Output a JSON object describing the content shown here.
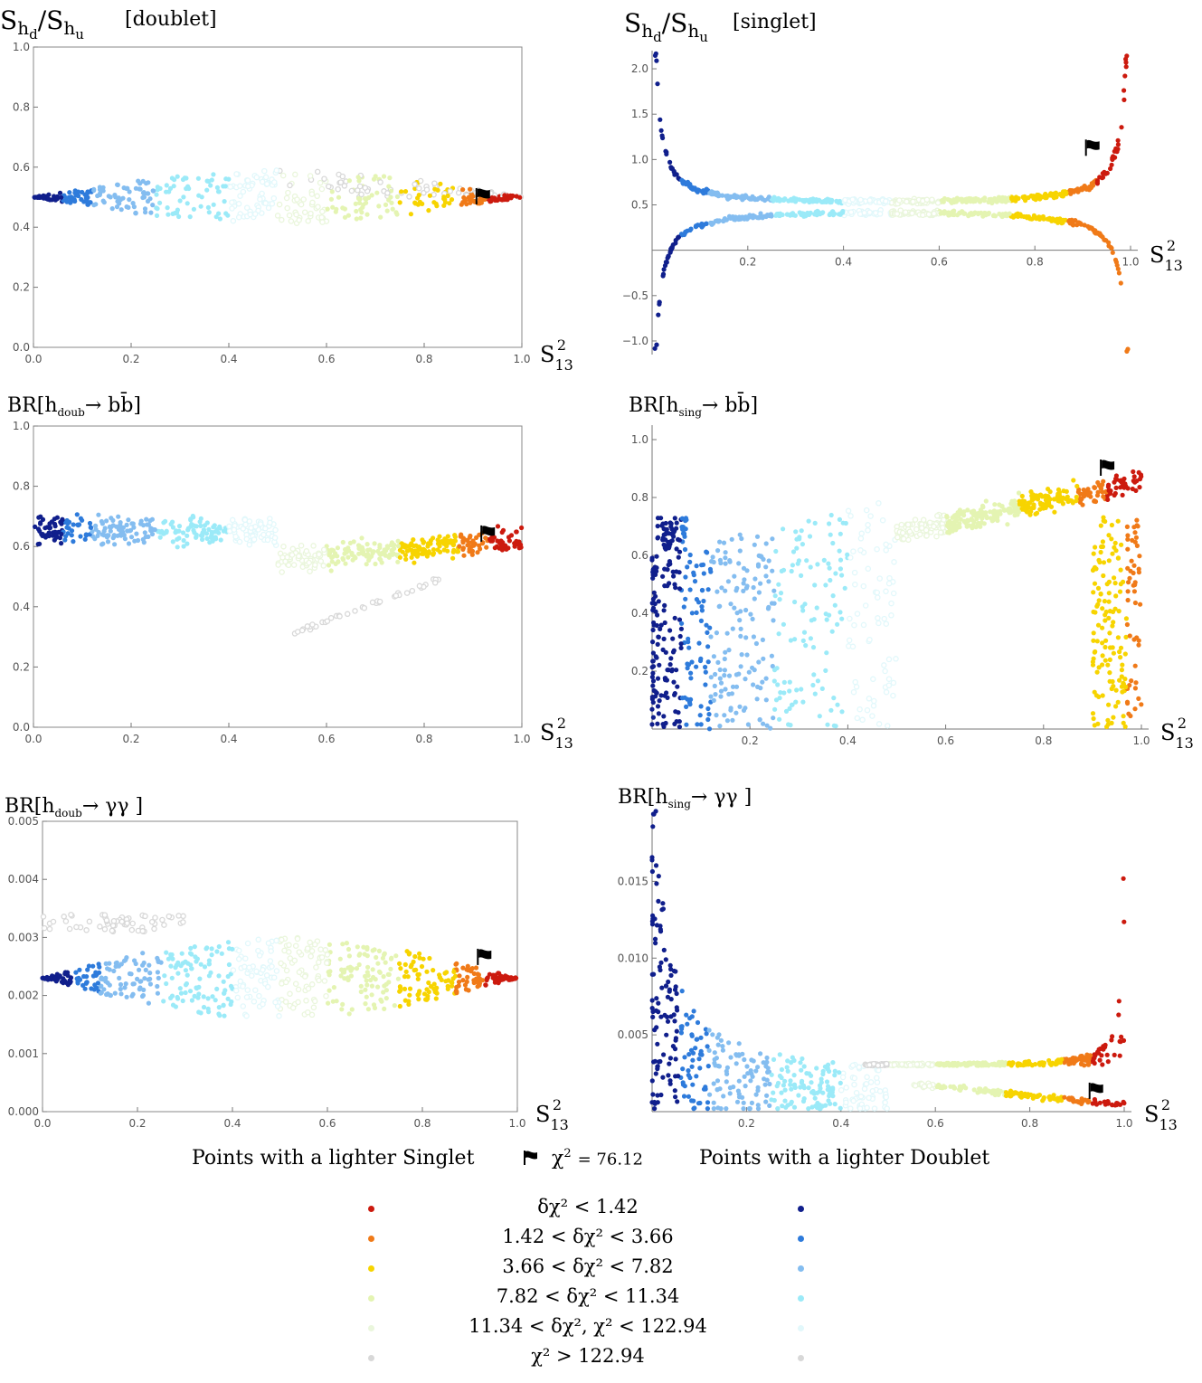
{
  "colors": {
    "red": "#cc1a0e",
    "orange": "#f07a18",
    "yellow": "#f7d400",
    "lime": "#e4f4b2",
    "palegreen": "#eaf6dc",
    "grey": "#d8d8d8",
    "navy": "#101f8c",
    "blue": "#2e7bdb",
    "lightblue": "#84bdf0",
    "cyan": "#9beaf8",
    "palecyan": "#e2f8fb"
  },
  "chart_data": [
    {
      "id": "p1",
      "type": "scatter",
      "title": "S_hd / S_hu [doublet]",
      "ylabel_main": "S",
      "ylabel_sub1": "h",
      "ylabel_subsub1": "d",
      "ylabel_sep": "/",
      "ylabel_sub2": "h",
      "ylabel_subsub2": "u",
      "ylabel_tag": "[doublet]",
      "xlabel": "S",
      "xlabel_sub": "13",
      "xlabel_sup": "2",
      "xlim": [
        0,
        1
      ],
      "ylim": [
        0,
        1
      ],
      "xticks": [
        "0.0",
        "0.2",
        "0.4",
        "0.6",
        "0.8",
        "1.0"
      ],
      "yticks": [
        "0.0",
        "0.2",
        "0.4",
        "0.6",
        "0.8",
        "1.0"
      ],
      "best_fit": [
        0.92,
        0.5
      ]
    },
    {
      "id": "p2",
      "type": "scatter",
      "title": "S_hd / S_hu [singlet]",
      "ylabel_main": "S",
      "ylabel_sub1": "h",
      "ylabel_subsub1": "d",
      "ylabel_sep": "/",
      "ylabel_sub2": "h",
      "ylabel_subsub2": "u",
      "ylabel_tag": "[singlet]",
      "xlabel": "S",
      "xlabel_sub": "13",
      "xlabel_sup": "2",
      "xlim": [
        0,
        1
      ],
      "ylim": [
        -1.15,
        2.2
      ],
      "xticks": [
        "0.2",
        "0.4",
        "0.6",
        "0.8",
        "1.0"
      ],
      "yticks": [
        "-1.0",
        "-0.5",
        "0.5",
        "1.0",
        "1.5",
        "2.0"
      ],
      "best_fit": [
        0.92,
        1.12
      ]
    },
    {
      "id": "p3",
      "type": "scatter",
      "title": "BR[h_doub -> b b-bar]",
      "ylabel_main": "BR[h",
      "ylabel_sub1": "doub",
      "ylabel_rest": "→ bb̄]",
      "xlabel": "S",
      "xlabel_sub": "13",
      "xlabel_sup": "2",
      "xlim": [
        0,
        1
      ],
      "ylim": [
        0,
        1
      ],
      "xticks": [
        "0.0",
        "0.2",
        "0.4",
        "0.6",
        "0.8",
        "1.0"
      ],
      "yticks": [
        "0.0",
        "0.2",
        "0.4",
        "0.6",
        "0.8",
        "1.0"
      ],
      "best_fit": [
        0.93,
        0.64
      ]
    },
    {
      "id": "p4",
      "type": "scatter",
      "title": "BR[h_sing -> b b-bar]",
      "ylabel_main": "BR[h",
      "ylabel_sub1": "sing",
      "ylabel_rest": "→ bb̄]",
      "xlabel": "S",
      "xlabel_sub": "13",
      "xlabel_sup": "2",
      "xlim": [
        0,
        1
      ],
      "ylim": [
        0,
        1.05
      ],
      "xticks": [
        "0.2",
        "0.4",
        "0.6",
        "0.8",
        "1.0"
      ],
      "yticks": [
        "0.2",
        "0.4",
        "0.6",
        "0.8",
        "1.0"
      ],
      "best_fit": [
        0.93,
        0.9
      ]
    },
    {
      "id": "p5",
      "type": "scatter",
      "title": "BR[h_doub -> gamma gamma]",
      "ylabel_main": "BR[h",
      "ylabel_sub1": "doub",
      "ylabel_rest": "→ γγ ]",
      "xlabel": "S",
      "xlabel_sub": "13",
      "xlabel_sup": "2",
      "xlim": [
        0,
        1
      ],
      "ylim": [
        0,
        0.005
      ],
      "xticks": [
        "0.0",
        "0.2",
        "0.4",
        "0.6",
        "0.8",
        "1.0"
      ],
      "yticks": [
        "0.000",
        "0.001",
        "0.002",
        "0.003",
        "0.004",
        "0.005"
      ],
      "best_fit": [
        0.93,
        0.00265
      ]
    },
    {
      "id": "p6",
      "type": "scatter",
      "title": "BR[h_sing -> gamma gamma]",
      "ylabel_main": "BR[h",
      "ylabel_sub1": "sing",
      "ylabel_rest": "→ γγ ]",
      "xlabel": "S",
      "xlabel_sub": "13",
      "xlabel_sup": "2",
      "xlim": [
        0,
        1
      ],
      "ylim": [
        0,
        0.0195
      ],
      "xticks": [
        "0.2",
        "0.4",
        "0.6",
        "0.8",
        "1.0"
      ],
      "yticks": [
        "0.005",
        "0.010",
        "0.015"
      ],
      "best_fit": [
        0.94,
        0.0013
      ]
    }
  ],
  "legend": {
    "left_header": "Points with a lighter Singlet",
    "center_header_prefix": "χ",
    "center_header_sup": "2",
    "center_header_value": "= 76.12",
    "right_header": "Points with a lighter Doublet",
    "rows": [
      {
        "label": "δχ² < 1.42",
        "left_color": "#cc1a0e",
        "right_color": "#101f8c"
      },
      {
        "label": "1.42 <  δχ² < 3.66",
        "left_color": "#f07a18",
        "right_color": "#2e7bdb"
      },
      {
        "label": "3.66 <  δχ² < 7.82",
        "left_color": "#f7d400",
        "right_color": "#84bdf0"
      },
      {
        "label": "7.82 <  δχ² < 11.34",
        "left_color": "#e4f4b2",
        "right_color": "#9beaf8"
      },
      {
        "label": "11.34 <  δχ²,   χ² < 122.94",
        "left_color": "#eaf6dc",
        "right_color": "#e2f8fb"
      },
      {
        "label": "χ² > 122.94",
        "left_color": "#d8d8d8",
        "right_color": "#d8d8d8"
      }
    ]
  }
}
